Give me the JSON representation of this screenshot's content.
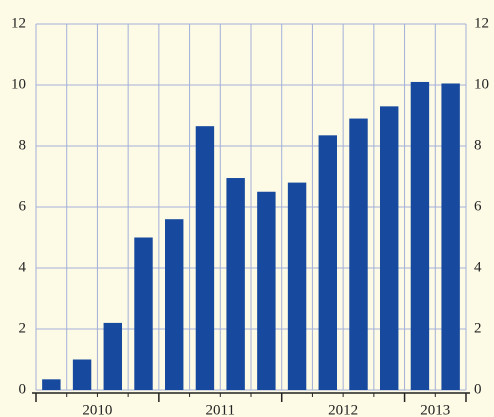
{
  "chart_data": {
    "type": "bar",
    "categories": [
      "2010",
      null,
      null,
      null,
      "2011",
      null,
      null,
      null,
      "2012",
      null,
      null,
      null,
      "2013",
      null
    ],
    "values": [
      0.35,
      1.0,
      2.2,
      5.0,
      5.6,
      8.65,
      6.95,
      6.5,
      6.8,
      8.35,
      8.9,
      9.3,
      10.1,
      10.05
    ],
    "color": "#174a9e",
    "ylim": [
      0,
      12
    ],
    "yticks": [
      0,
      2,
      4,
      6,
      8,
      10,
      12
    ],
    "y2lim": [
      0,
      12
    ],
    "y2ticks": [
      0,
      2,
      4,
      6,
      8,
      10,
      12
    ],
    "grid": true
  }
}
